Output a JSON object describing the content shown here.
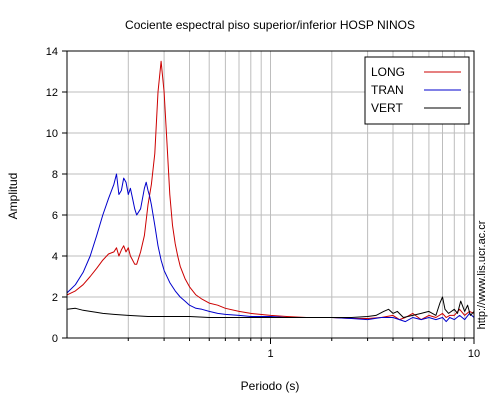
{
  "chart_data": {
    "type": "line",
    "title": "Cociente espectral piso superior/inferior  HOSP NINOS",
    "xlabel": "Periodo (s)",
    "ylabel": "Amplitud",
    "x_scale": "log",
    "xlim": [
      0.1,
      10
    ],
    "ylim": [
      0,
      14
    ],
    "x_ticks": [
      {
        "value": 1,
        "label": "1"
      },
      {
        "value": 10,
        "label": "10"
      }
    ],
    "y_ticks": [
      {
        "value": 0,
        "label": "0"
      },
      {
        "value": 2,
        "label": "2"
      },
      {
        "value": 4,
        "label": "4"
      },
      {
        "value": 6,
        "label": "6"
      },
      {
        "value": 8,
        "label": "8"
      },
      {
        "value": 10,
        "label": "10"
      },
      {
        "value": 12,
        "label": "12"
      },
      {
        "value": 14,
        "label": "14"
      }
    ],
    "grid": true,
    "legend_position": "top-right",
    "side_text": "http://www.lis.ucr.ac.cr",
    "series": [
      {
        "name": "LONG",
        "color": "#cc0000",
        "x": [
          0.1,
          0.11,
          0.12,
          0.13,
          0.14,
          0.15,
          0.16,
          0.17,
          0.175,
          0.18,
          0.185,
          0.19,
          0.195,
          0.2,
          0.205,
          0.21,
          0.215,
          0.22,
          0.23,
          0.24,
          0.25,
          0.26,
          0.27,
          0.28,
          0.29,
          0.3,
          0.31,
          0.32,
          0.33,
          0.34,
          0.35,
          0.36,
          0.38,
          0.4,
          0.43,
          0.46,
          0.5,
          0.55,
          0.6,
          0.7,
          0.8,
          1.0,
          1.2,
          1.5,
          2.0,
          2.5,
          3.0,
          3.5,
          4.0,
          4.3,
          4.6,
          5.0,
          5.5,
          6.0,
          6.5,
          7.0,
          7.3,
          7.6,
          8.0,
          8.5,
          9.0,
          9.5,
          10.0
        ],
        "y": [
          2.1,
          2.3,
          2.6,
          3.0,
          3.4,
          3.8,
          4.1,
          4.2,
          4.4,
          4.0,
          4.3,
          4.5,
          4.2,
          4.4,
          4.0,
          3.8,
          3.6,
          3.6,
          4.2,
          5.0,
          6.5,
          7.5,
          9.0,
          12.0,
          13.5,
          12.0,
          9.5,
          7.0,
          5.5,
          4.6,
          4.0,
          3.5,
          2.9,
          2.5,
          2.1,
          1.9,
          1.7,
          1.6,
          1.45,
          1.3,
          1.2,
          1.1,
          1.05,
          1.0,
          1.0,
          0.95,
          0.95,
          1.0,
          1.1,
          0.9,
          1.0,
          1.2,
          0.9,
          1.1,
          1.0,
          1.2,
          1.0,
          1.1,
          1.1,
          1.4,
          1.1,
          1.3,
          1.2
        ]
      },
      {
        "name": "TRAN",
        "color": "#0000cc",
        "x": [
          0.1,
          0.11,
          0.12,
          0.13,
          0.14,
          0.15,
          0.16,
          0.17,
          0.175,
          0.18,
          0.185,
          0.19,
          0.195,
          0.2,
          0.205,
          0.21,
          0.215,
          0.22,
          0.23,
          0.24,
          0.245,
          0.25,
          0.255,
          0.26,
          0.27,
          0.28,
          0.29,
          0.3,
          0.32,
          0.34,
          0.36,
          0.38,
          0.4,
          0.43,
          0.46,
          0.5,
          0.55,
          0.6,
          0.7,
          0.8,
          1.0,
          1.2,
          1.5,
          2.0,
          2.5,
          3.0,
          3.5,
          4.0,
          4.3,
          4.6,
          5.0,
          5.5,
          6.0,
          6.5,
          7.0,
          7.3,
          7.6,
          8.0,
          8.5,
          9.0,
          9.5,
          10.0
        ],
        "y": [
          2.2,
          2.6,
          3.2,
          4.0,
          5.0,
          6.0,
          6.8,
          7.5,
          8.0,
          7.0,
          7.2,
          7.8,
          7.6,
          7.0,
          7.3,
          6.8,
          6.3,
          6.0,
          6.3,
          7.3,
          7.6,
          7.2,
          6.9,
          6.5,
          5.5,
          4.5,
          3.8,
          3.3,
          2.7,
          2.3,
          2.0,
          1.8,
          1.6,
          1.45,
          1.4,
          1.3,
          1.2,
          1.15,
          1.1,
          1.05,
          1.05,
          1.0,
          1.0,
          1.0,
          0.95,
          0.9,
          1.0,
          1.0,
          0.9,
          0.8,
          1.0,
          0.9,
          1.0,
          0.9,
          1.0,
          0.8,
          1.0,
          0.9,
          1.1,
          0.9,
          1.2,
          1.0
        ]
      },
      {
        "name": "VERT",
        "color": "#000000",
        "x": [
          0.1,
          0.11,
          0.12,
          0.13,
          0.14,
          0.15,
          0.17,
          0.2,
          0.25,
          0.3,
          0.4,
          0.5,
          0.7,
          1.0,
          1.5,
          2.0,
          2.5,
          3.0,
          3.3,
          3.6,
          3.8,
          4.0,
          4.2,
          4.5,
          5.0,
          5.5,
          6.0,
          6.5,
          6.8,
          7.0,
          7.2,
          7.5,
          8.0,
          8.3,
          8.6,
          9.0,
          9.3,
          9.6,
          10.0
        ],
        "y": [
          1.4,
          1.45,
          1.35,
          1.3,
          1.25,
          1.2,
          1.15,
          1.1,
          1.05,
          1.05,
          1.05,
          1.0,
          1.0,
          1.0,
          1.0,
          1.0,
          1.0,
          1.05,
          1.1,
          1.3,
          1.4,
          1.2,
          1.3,
          1.0,
          1.1,
          1.2,
          1.3,
          1.1,
          1.7,
          2.0,
          1.4,
          1.2,
          1.4,
          1.2,
          1.8,
          1.3,
          1.6,
          1.1,
          1.3
        ]
      }
    ]
  }
}
